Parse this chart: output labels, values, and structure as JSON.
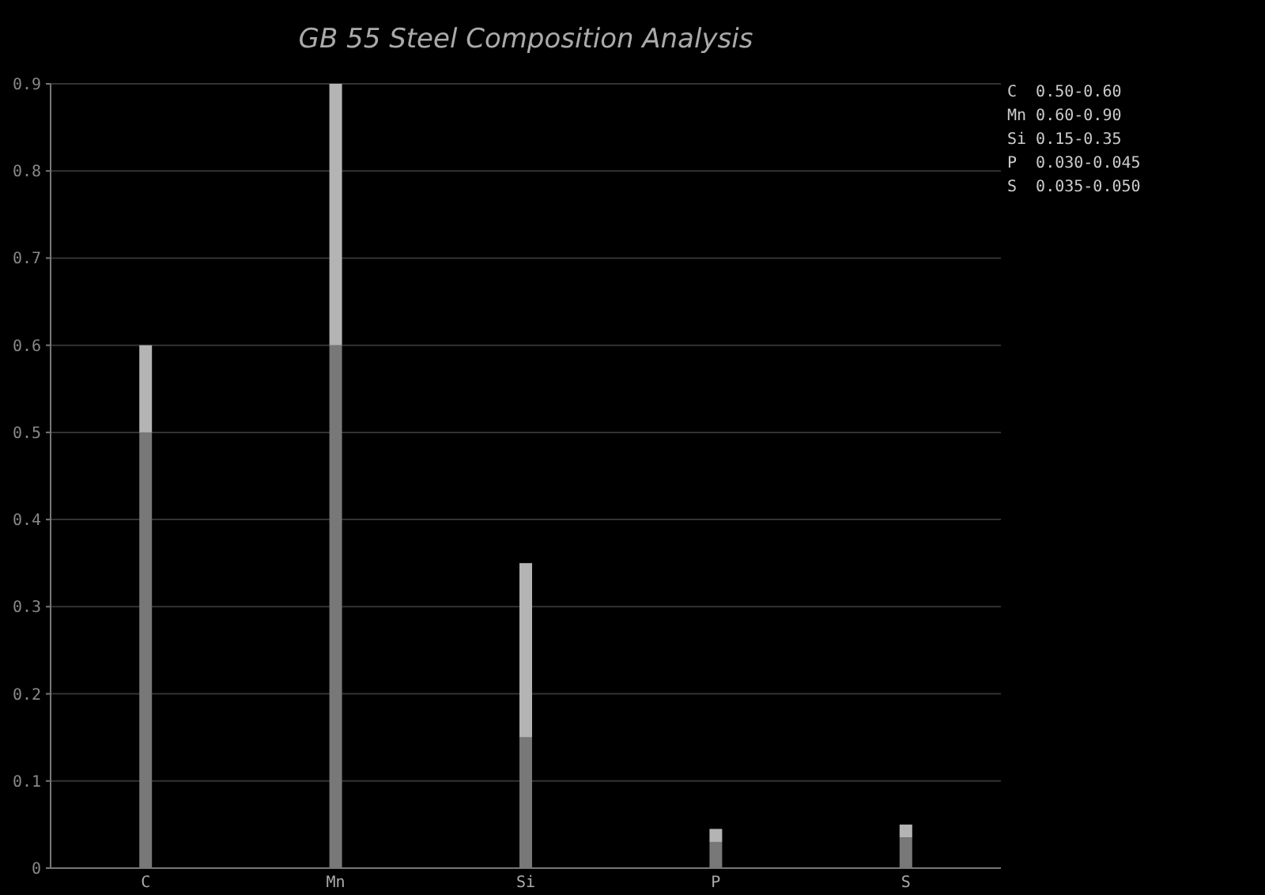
{
  "chart_data": {
    "type": "bar",
    "title": "GB 55 Steel Composition Analysis",
    "categories": [
      "C",
      "Mn",
      "Si",
      "P",
      "S"
    ],
    "stacked": true,
    "series": [
      {
        "color": "#787878",
        "values": [
          0.5,
          0.6,
          0.15,
          0.03,
          0.035
        ]
      },
      {
        "color": "#b4b4b4",
        "values": [
          0.1,
          0.3,
          0.2,
          0.015,
          0.015
        ]
      }
    ],
    "ylim": [
      0,
      0.9
    ],
    "yticks": [
      0,
      0.1,
      0.2,
      0.3,
      0.4,
      0.5,
      0.6,
      0.7,
      0.8,
      0.9
    ],
    "grid": "y",
    "annotations": [
      "C  0.50-0.60",
      "Mn 0.60-0.90",
      "Si 0.15-0.35",
      "P  0.030-0.045",
      "S  0.035-0.050"
    ]
  }
}
